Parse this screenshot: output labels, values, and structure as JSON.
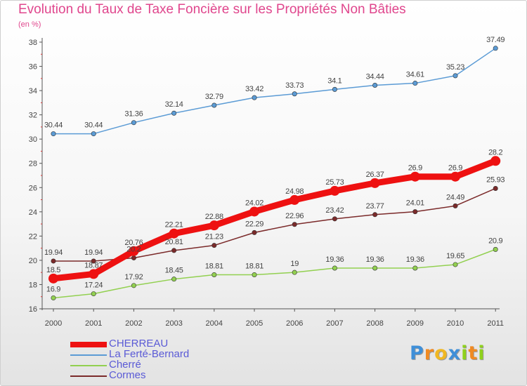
{
  "header": {
    "title": "Evolution du Taux de Taxe Foncière sur les Propriétés Non Bâties",
    "unit": "(en %)"
  },
  "logo": {
    "text": "Proxiti",
    "letters": [
      {
        "ch": "P",
        "color": "#3f8fd8"
      },
      {
        "ch": "r",
        "color": "#f08a22"
      },
      {
        "ch": "o",
        "color": "#f0b722"
      },
      {
        "ch": "x",
        "color": "#3f8fd8"
      },
      {
        "ch": "i",
        "color": "#8fd11c"
      },
      {
        "ch": "t",
        "color": "#f08a22"
      },
      {
        "ch": "i",
        "color": "#8fd11c"
      }
    ]
  },
  "colors": {
    "axis": "#555555",
    "tick_text": "#444444",
    "grid": "#d9d9d9"
  },
  "chart_data": {
    "type": "line",
    "title": "Evolution du Taux de Taxe Foncière sur les Propriétés Non Bâties",
    "ylabel": "(en %)",
    "xlabel": "",
    "x": [
      "2000",
      "2001",
      "2002",
      "2003",
      "2004",
      "2005",
      "2006",
      "2007",
      "2008",
      "2009",
      "2010",
      "2011"
    ],
    "ylim": [
      16,
      38
    ],
    "yticks": [
      16,
      18,
      20,
      22,
      24,
      26,
      28,
      30,
      32,
      34,
      36,
      38
    ],
    "grid": false,
    "legend_position": "bottom-left",
    "series": [
      {
        "name": "CHERREAU",
        "color": "#ee1111",
        "emphasis": true,
        "values": [
          18.5,
          18.87,
          20.76,
          22.21,
          22.88,
          24.02,
          24.98,
          25.73,
          26.37,
          26.9,
          26.9,
          28.2
        ],
        "labels": [
          "18.5",
          "18.87",
          "20.76",
          "22.21",
          "22.88",
          "24.02",
          "24.98",
          "25.73",
          "26.37",
          "26.9",
          "26.9",
          "28.2"
        ]
      },
      {
        "name": "La Ferté-Bernard",
        "color": "#5b9bd5",
        "emphasis": false,
        "values": [
          30.44,
          30.44,
          31.36,
          32.14,
          32.79,
          33.42,
          33.73,
          34.1,
          34.44,
          34.61,
          35.23,
          37.49
        ],
        "labels": [
          "30.44",
          "30.44",
          "31.36",
          "32.14",
          "32.79",
          "33.42",
          "33.73",
          "34.1",
          "34.44",
          "34.61",
          "35.23",
          "37.49"
        ]
      },
      {
        "name": "Cherré",
        "color": "#92d050",
        "emphasis": false,
        "values": [
          16.9,
          17.24,
          17.92,
          18.45,
          18.81,
          18.81,
          19.0,
          19.36,
          19.36,
          19.36,
          19.65,
          20.9
        ],
        "labels": [
          "16.9",
          "17.24",
          "17.92",
          "18.45",
          "18.81",
          "18.81",
          "19",
          "19.36",
          "19.36",
          "19.36",
          "19.65",
          "20.9"
        ]
      },
      {
        "name": "Cormes",
        "color": "#7b2a2a",
        "emphasis": false,
        "values": [
          19.94,
          19.94,
          20.2,
          20.81,
          21.23,
          22.29,
          22.96,
          23.42,
          23.77,
          24.01,
          24.49,
          25.93
        ],
        "labels": [
          "19.94",
          "19.94",
          "20.2",
          "20.81",
          "21.23",
          "22.29",
          "22.96",
          "23.42",
          "23.77",
          "24.01",
          "24.49",
          "25.93"
        ]
      }
    ]
  }
}
